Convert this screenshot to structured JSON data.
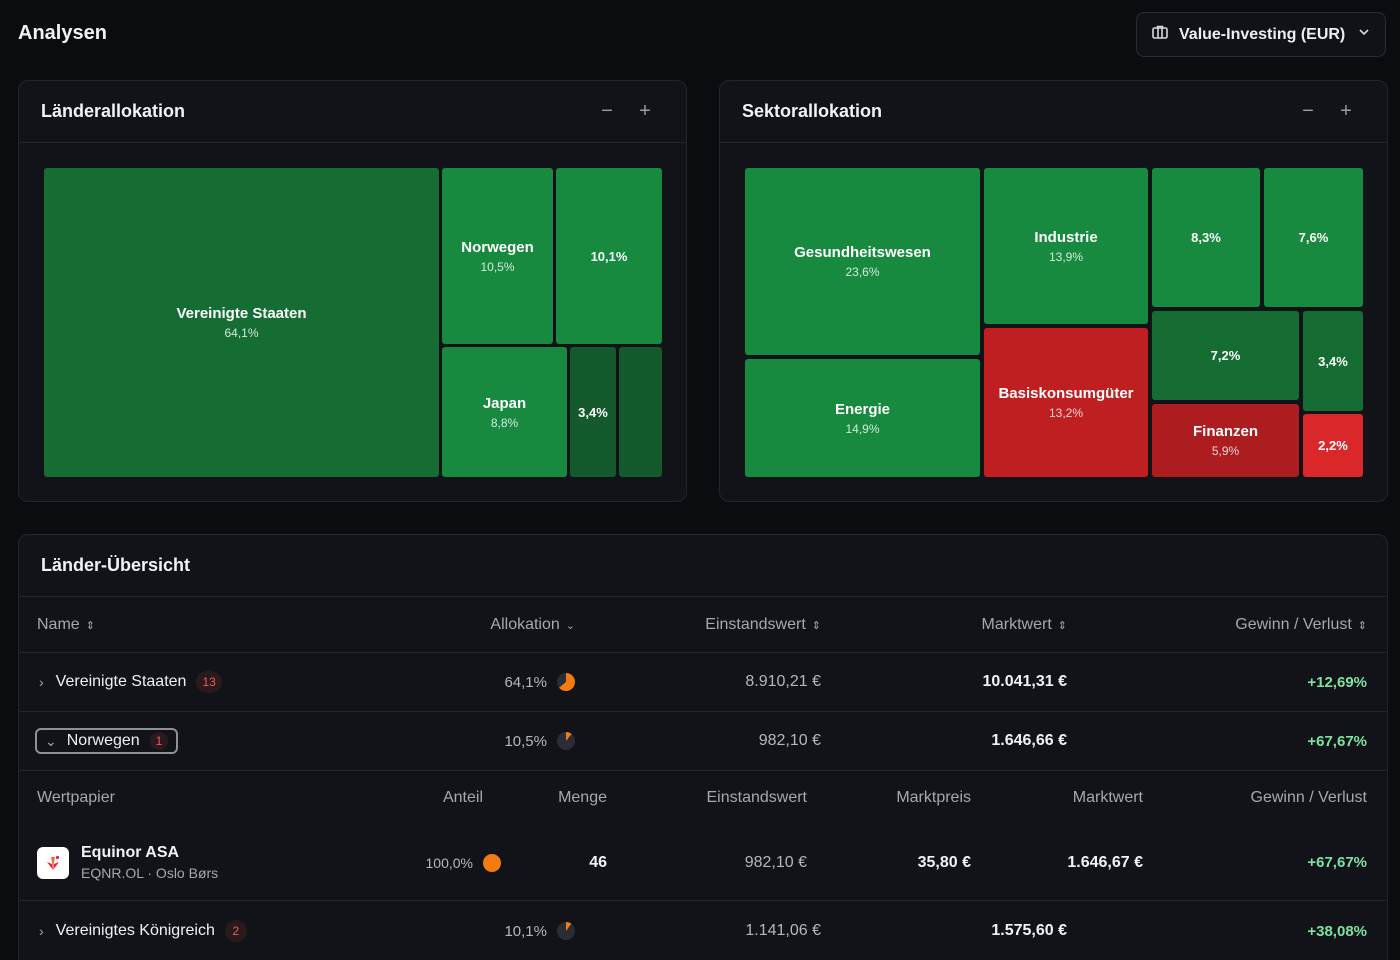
{
  "page": {
    "title": "Analysen"
  },
  "portfolio_select": {
    "label": "Value-Investing (EUR)",
    "icon": "briefcase-icon"
  },
  "country_allocation": {
    "title": "Länderallokation",
    "controls": [
      "−",
      "+"
    ],
    "tiles": [
      {
        "name": "Vereinigte Staaten",
        "value": "64,1%"
      },
      {
        "name": "Norwegen",
        "value": "10,5%"
      },
      {
        "name": "",
        "value": "10,1%"
      },
      {
        "name": "Japan",
        "value": "8,8%"
      },
      {
        "name": "",
        "value": "3,4%"
      },
      {
        "name": "",
        "value": ""
      }
    ]
  },
  "sector_allocation": {
    "title": "Sektorallokation",
    "controls": [
      "−",
      "+"
    ],
    "tiles": [
      {
        "name": "Gesundheitswesen",
        "value": "23,6%"
      },
      {
        "name": "Energie",
        "value": "14,9%"
      },
      {
        "name": "Industrie",
        "value": "13,9%"
      },
      {
        "name": "Basiskonsumgüter",
        "value": "13,2%"
      },
      {
        "name": "",
        "value": "8,3%"
      },
      {
        "name": "",
        "value": "7,6%"
      },
      {
        "name": "",
        "value": "7,2%"
      },
      {
        "name": "",
        "value": "3,4%"
      },
      {
        "name": "Finanzen",
        "value": "5,9%"
      },
      {
        "name": "",
        "value": "2,2%"
      }
    ]
  },
  "overview": {
    "title": "Länder-Übersicht",
    "columns": [
      "Name",
      "Allokation",
      "Einstandswert",
      "Marktwert",
      "Gewinn / Verlust"
    ],
    "rows": [
      {
        "name": "Vereinigte Staaten",
        "count": "13",
        "allocation": "64,1%",
        "cost": "8.910,21 €",
        "market": "10.041,31 €",
        "gain": "+12,69%",
        "expanded": false,
        "share": 0.641
      },
      {
        "name": "Norwegen",
        "count": "1",
        "allocation": "10,5%",
        "cost": "982,10 €",
        "market": "1.646,66 €",
        "gain": "+67,67%",
        "expanded": true,
        "share": 0.105
      },
      {
        "name": "Vereinigtes Königreich",
        "count": "2",
        "allocation": "10,1%",
        "cost": "1.141,06 €",
        "market": "1.575,60 €",
        "gain": "+38,08%",
        "expanded": false,
        "share": 0.101
      }
    ],
    "sub_columns": [
      "Wertpapier",
      "Anteil",
      "Menge",
      "Einstandswert",
      "Marktpreis",
      "Marktwert",
      "Gewinn / Verlust"
    ],
    "securities": [
      {
        "name": "Equinor ASA",
        "subtitle": "EQNR.OL · Oslo Børs",
        "share": "100,0%",
        "quantity": "46",
        "cost": "982,10 €",
        "price": "35,80 €",
        "market": "1.646,67 €",
        "gain": "+67,67%"
      }
    ]
  },
  "colors": {
    "accent_orange": "#f47b10",
    "gain_green": "#7ee2a0",
    "loss_red": "#c01f22",
    "tile_green": "#178a3f"
  }
}
